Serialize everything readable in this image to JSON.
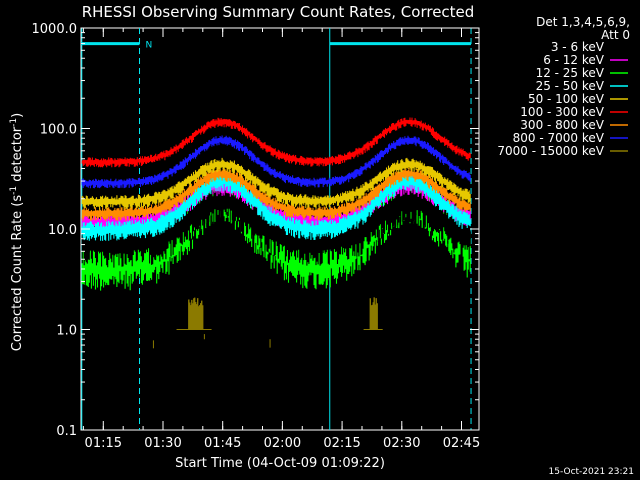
{
  "chart_data": {
    "type": "line",
    "title": "RHESSI Observing Summary Count Rates, Corrected",
    "xlabel": "Start Time (04-Oct-09 01:09:22)",
    "ylabel_main": "Corrected Count Rate (s",
    "ylabel_sup1": "-1",
    "ylabel_mid": " detector",
    "ylabel_sup2": "-1",
    "ylabel_end": ")",
    "yscale": "log",
    "ylim": [
      0.1,
      1000
    ],
    "xlim_minutes": [
      0,
      100
    ],
    "x_ticks": [
      {
        "label": "01:15",
        "minute": 5.6
      },
      {
        "label": "01:30",
        "minute": 20.6
      },
      {
        "label": "01:45",
        "minute": 35.6
      },
      {
        "label": "02:00",
        "minute": 50.6
      },
      {
        "label": "02:15",
        "minute": 65.6
      },
      {
        "label": "02:30",
        "minute": 80.6
      },
      {
        "label": "02:45",
        "minute": 95.6
      }
    ],
    "y_ticks": [
      {
        "label": "0.1",
        "value": 0.1
      },
      {
        "label": "1.0",
        "value": 1.0
      },
      {
        "label": "10.0",
        "value": 10
      },
      {
        "label": "100.0",
        "value": 100
      },
      {
        "label": "1000.0",
        "value": 1000
      }
    ],
    "legend_header": [
      "Det 1,3,4,5,6,9,",
      "Att 0"
    ],
    "legend_position": "top-right",
    "series": [
      {
        "name": "3 - 6 keV",
        "color": "#000000",
        "base": 7.5,
        "peak": 20,
        "noise": 0.22
      },
      {
        "name": "6 - 12 keV",
        "color": "#ff00ff",
        "base": 12,
        "peak": 28,
        "noise": 0.1
      },
      {
        "name": "12 - 25 keV",
        "color": "#00ff00",
        "base": 4.8,
        "peak": 22,
        "noise": 0.25
      },
      {
        "name": "25 - 50 keV",
        "color": "#00ffff",
        "base": 10,
        "peak": 31,
        "noise": 0.1
      },
      {
        "name": "50 - 100 keV",
        "color": "#e6c800",
        "base": 19,
        "peak": 45,
        "noise": 0.07
      },
      {
        "name": "100 - 300 keV",
        "color": "#ff0000",
        "base": 47,
        "peak": 118,
        "noise": 0.05
      },
      {
        "name": "300 - 800 keV",
        "color": "#ff8c00",
        "base": 14.5,
        "peak": 36,
        "noise": 0.07
      },
      {
        "name": "800 - 7000 keV",
        "color": "#1a1aff",
        "base": 29,
        "peak": 78,
        "noise": 0.05
      },
      {
        "name": "7000 - 15000 keV",
        "color": "#8b7a00",
        "base": 1.0,
        "peak": 1.0,
        "noise": 0.0
      }
    ],
    "count_rate_humps_minutes": [
      35.5,
      82.5
    ],
    "hump_width_minutes": 11,
    "day_night_bars": [
      {
        "from_minute": 0,
        "to_minute": 14.7,
        "label": ""
      },
      {
        "from_minute": 14.7,
        "to_minute": 15.2,
        "label": "N"
      },
      {
        "from_minute": 62.5,
        "to_minute": 79,
        "label": ""
      },
      {
        "from_minute": 79,
        "to_minute": 98,
        "label": ""
      }
    ],
    "night_bar_label": "N",
    "vertical_markers_minutes": [
      {
        "minute": 0.2,
        "style": "solid"
      },
      {
        "minute": 14.7,
        "style": "dashed"
      },
      {
        "minute": 62.5,
        "style": "solid"
      },
      {
        "minute": 98,
        "style": "dashed"
      }
    ],
    "attenuator_bursts": [
      {
        "from_minute": 24.0,
        "to_minute": 32.8
      },
      {
        "from_minute": 71.0,
        "to_minute": 75.8
      }
    ]
  },
  "timestamp": "15-Oct-2021 23:21",
  "colors": {
    "background": "#000000",
    "axis": "#ffffff",
    "marker": "#00e5ee"
  }
}
